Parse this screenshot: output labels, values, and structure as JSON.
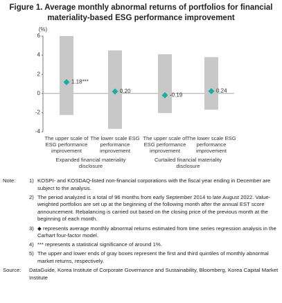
{
  "title": "Figure 1. Average monthly abnormal returns of portfolios for financial materiality-based ESG performance improvement",
  "chart_data": {
    "type": "box",
    "y_label": "(%)",
    "categories": [
      "The upper scale of ESG performance improvement",
      "The lower scale ESG performance improvement",
      "The upper scale of ESG performance improvement",
      "The lower scale ESG performance improvement"
    ],
    "groups": [
      "Expanded financial materiality disclosure",
      "Curtailed financial materiality disclosure"
    ],
    "values": [
      1.18,
      0.2,
      -0.19,
      0.24
    ],
    "value_labels": [
      "1.18***",
      "0.20",
      "-0.19",
      "0.24"
    ],
    "q1": [
      -2.25,
      -3.7,
      -2.05,
      -1.7
    ],
    "q3": [
      6.0,
      4.5,
      4.1,
      3.8
    ],
    "box_color": "#c8c8c8",
    "marker_color": "#1aaea0",
    "ylim": [
      -4,
      6
    ],
    "yticks": [
      -4,
      -2,
      0,
      2,
      4,
      6
    ]
  },
  "notes": {
    "label": "Note:",
    "items": [
      {
        "marker": "1)",
        "text": "KOSPI- and KOSDAQ-listed non-financial corporations with the fiscal year ending in December are subject to the analysis."
      },
      {
        "marker": "2)",
        "text": "The period analyzed is a total of 96 months from early September 2014 to late August 2022. Value-weighted portfolios are set up at the beginning of the following month after the annual EST score announcement. Rebalancing is carried out based on the closing price of the previous month at the beginning of each month."
      },
      {
        "marker": "3)",
        "text": "◆ represents average monthly abnormal returns estimated from time series regression analysis in the Carhart four-factor model."
      },
      {
        "marker": "4)",
        "text": "*** represents a statistical significance of around 1%."
      },
      {
        "marker": "5)",
        "text": "The upper and lower ends of gray boxes represent the first and third quintiles of monthly abnormal market returns, respectively."
      }
    ]
  },
  "source": {
    "label": "Source:",
    "text": "DataGuide, Korea Institute of Corporate Governance and Sustainability, Bloomberg, Korea Capital Market Institute"
  }
}
